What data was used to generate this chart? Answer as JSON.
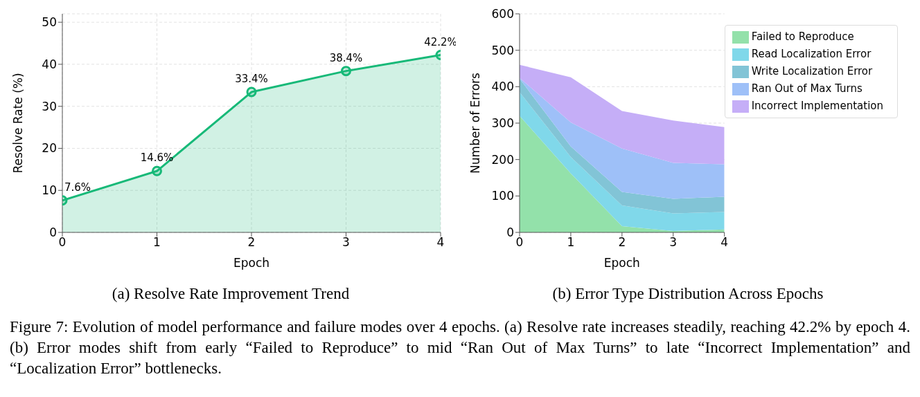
{
  "chart_data": [
    {
      "type": "area",
      "title": "(a) Resolve Rate Improvement Trend",
      "xlabel": "Epoch",
      "ylabel": "Resolve Rate (%)",
      "x": [
        0,
        1,
        2,
        3,
        4
      ],
      "xlim": [
        0,
        4
      ],
      "xticks": [
        0,
        1,
        2,
        3,
        4
      ],
      "ylim": [
        0,
        52
      ],
      "yticks": [
        0,
        10,
        20,
        30,
        40,
        50
      ],
      "grid": true,
      "marker": "circle",
      "line_style": "solid",
      "series": [
        {
          "color": "#17b978",
          "values": [
            7.6,
            14.6,
            33.4,
            38.4,
            42.2
          ],
          "value_labels": [
            "7.6%",
            "14.6%",
            "33.4%",
            "38.4%",
            "42.2%"
          ]
        }
      ],
      "annotations": [
        "Figure 7: Evolution of model performance and failure modes over 4 epochs. (a) Resolve rate increases steadily, reaching 42.2% by epoch 4. (b) Error modes shift from early “Failed to Reproduce” to mid “Ran Out of Max Turns” to late “Incorrect Implementation” and “Localization Error” bottlenecks."
      ]
    },
    {
      "type": "area",
      "stacked": true,
      "title": "(b) Error Type Distribution Across Epochs",
      "xlabel": "Epoch",
      "ylabel": "Number of Errors",
      "x": [
        0,
        1,
        2,
        3,
        4
      ],
      "xlim": [
        0,
        4
      ],
      "xticks": [
        0,
        1,
        2,
        3,
        4
      ],
      "ylim": [
        0,
        600
      ],
      "yticks": [
        0,
        100,
        200,
        300,
        400,
        500,
        600
      ],
      "grid": "y",
      "legend": "top right",
      "series": [
        {
          "name": "Failed to Reproduce",
          "color": "#93e1aa",
          "values": [
            320,
            162,
            17,
            4,
            8
          ]
        },
        {
          "name": "Read Localization Error",
          "color": "#80d8ea",
          "values": [
            65,
            45,
            57,
            48,
            48
          ]
        },
        {
          "name": "Write Localization Error",
          "color": "#82c4d6",
          "values": [
            37,
            29,
            37,
            40,
            42
          ]
        },
        {
          "name": "Ran Out of Max Turns",
          "color": "#9ec0f8",
          "values": [
            2,
            66,
            119,
            99,
            89
          ]
        },
        {
          "name": "Incorrect Implementation",
          "color": "#c5aef7",
          "values": [
            36,
            124,
            103,
            116,
            102
          ]
        }
      ]
    }
  ]
}
